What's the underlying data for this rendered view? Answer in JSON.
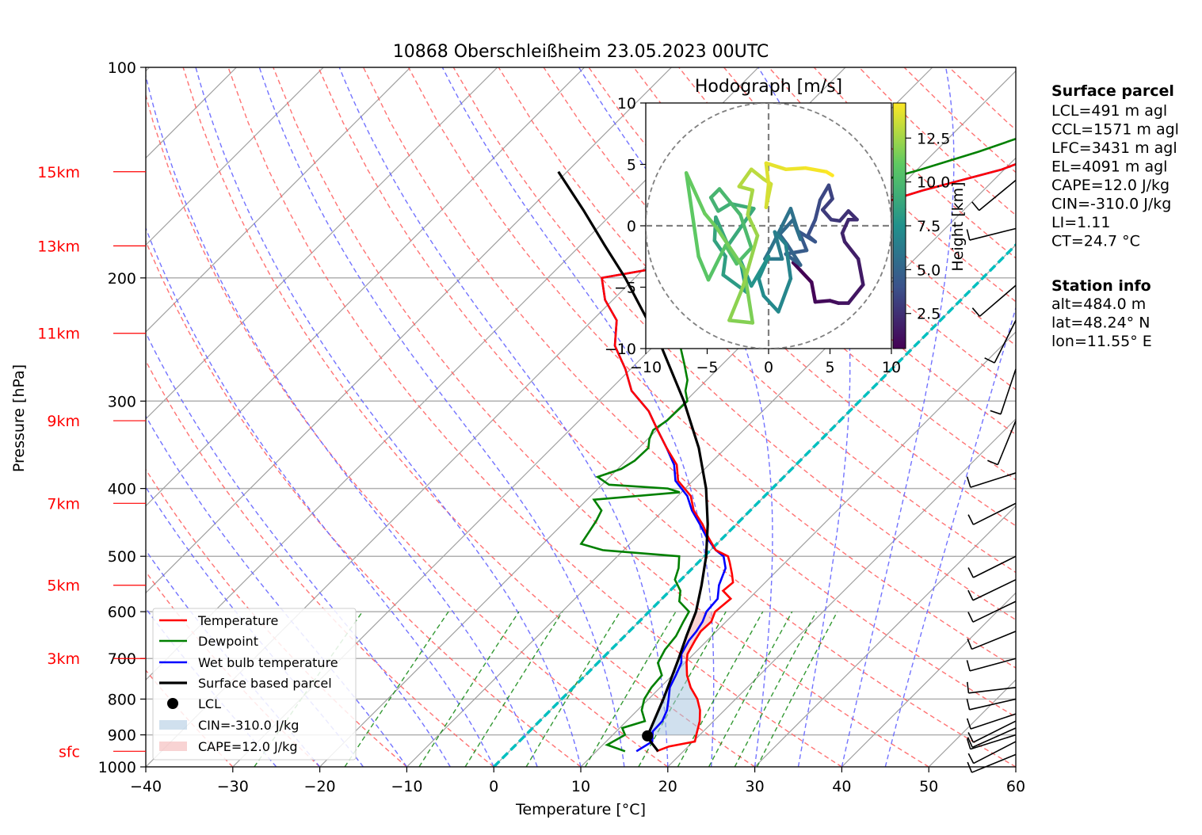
{
  "chart_data": {
    "type": "skew-t log-p sounding",
    "title": "10868 Oberschleißheim 23.05.2023 00UTC",
    "xlabel": "Temperature [°C]",
    "ylabel": "Pressure [hPa]",
    "xlim": [
      -40,
      60
    ],
    "ylim_hpa": [
      1000,
      100
    ],
    "x_ticks": [
      -40,
      -30,
      -20,
      -10,
      0,
      10,
      20,
      30,
      40,
      50,
      60
    ],
    "x_tick_labels": [
      "−40",
      "−30",
      "−20",
      "−10",
      "0",
      "10",
      "20",
      "30",
      "40",
      "50",
      "60"
    ],
    "pressure_ticks": [
      1000,
      900,
      800,
      700,
      600,
      500,
      400,
      300,
      200,
      100
    ],
    "pressure_tick_labels": [
      "1000",
      "900",
      "800",
      "700",
      "600",
      "500",
      "400",
      "300",
      "200",
      "100"
    ],
    "height_markers": [
      {
        "label": "sfc",
        "p": 950
      },
      {
        "label": "3km",
        "p": 700
      },
      {
        "label": "5km",
        "p": 550
      },
      {
        "label": "7km",
        "p": 420
      },
      {
        "label": "9km",
        "p": 320
      },
      {
        "label": "11km",
        "p": 240
      },
      {
        "label": "13km",
        "p": 180
      },
      {
        "label": "15km",
        "p": 141
      }
    ],
    "temperature": [
      [
        950,
        16.9
      ],
      [
        935,
        17.8
      ],
      [
        920,
        20.2
      ],
      [
        900,
        19.6
      ],
      [
        860,
        18.4
      ],
      [
        830,
        17.2
      ],
      [
        800,
        15.6
      ],
      [
        770,
        13.5
      ],
      [
        740,
        11.7
      ],
      [
        710,
        10.2
      ],
      [
        690,
        9.3
      ],
      [
        660,
        8.6
      ],
      [
        640,
        8.2
      ],
      [
        620,
        8.3
      ],
      [
        600,
        7.6
      ],
      [
        575,
        7.9
      ],
      [
        560,
        6.1
      ],
      [
        545,
        6.3
      ],
      [
        530,
        5.2
      ],
      [
        510,
        3.6
      ],
      [
        500,
        2.7
      ],
      [
        490,
        0.6
      ],
      [
        470,
        -1.7
      ],
      [
        450,
        -3.9
      ],
      [
        430,
        -6.5
      ],
      [
        410,
        -8.5
      ],
      [
        390,
        -11.7
      ],
      [
        370,
        -13.7
      ],
      [
        350,
        -16.8
      ],
      [
        330,
        -19.9
      ],
      [
        310,
        -23.1
      ],
      [
        290,
        -27.4
      ],
      [
        270,
        -30.6
      ],
      [
        250,
        -34.5
      ],
      [
        230,
        -37.2
      ],
      [
        215,
        -40.9
      ],
      [
        200,
        -43.8
      ],
      [
        190,
        -35.4
      ],
      [
        180,
        -29.4
      ],
      [
        170,
        -27.1
      ],
      [
        160,
        -22.0
      ],
      [
        150,
        -17.0
      ],
      [
        140,
        -10.3
      ],
      [
        130,
        -6.0
      ],
      [
        120,
        -1.0
      ],
      [
        112,
        2.8
      ],
      [
        105,
        5.7
      ],
      [
        101,
        9.8
      ]
    ],
    "dewpoint": [
      [
        950,
        13.3
      ],
      [
        930,
        10.5
      ],
      [
        900,
        11.4
      ],
      [
        880,
        10.3
      ],
      [
        860,
        12.1
      ],
      [
        830,
        10.5
      ],
      [
        800,
        9.5
      ],
      [
        770,
        9.0
      ],
      [
        740,
        8.8
      ],
      [
        710,
        6.9
      ],
      [
        680,
        6.2
      ],
      [
        650,
        5.9
      ],
      [
        620,
        5.1
      ],
      [
        600,
        4.6
      ],
      [
        580,
        2.3
      ],
      [
        560,
        1.2
      ],
      [
        540,
        -0.7
      ],
      [
        520,
        -1.6
      ],
      [
        500,
        -2.9
      ],
      [
        490,
        -12.4
      ],
      [
        480,
        -15.6
      ],
      [
        460,
        -16.1
      ],
      [
        445,
        -16.5
      ],
      [
        430,
        -17.1
      ],
      [
        415,
        -19.2
      ],
      [
        405,
        -10.2
      ],
      [
        400,
        -12.0
      ],
      [
        395,
        -19.2
      ],
      [
        385,
        -21.4
      ],
      [
        375,
        -19.6
      ],
      [
        365,
        -19.0
      ],
      [
        350,
        -18.9
      ],
      [
        340,
        -19.8
      ],
      [
        330,
        -20.4
      ],
      [
        320,
        -19.9
      ],
      [
        300,
        -19.8
      ],
      [
        290,
        -21.2
      ],
      [
        280,
        -22.2
      ],
      [
        265,
        -24.5
      ],
      [
        250,
        -27.0
      ],
      [
        235,
        -29.1
      ],
      [
        220,
        -29.8
      ],
      [
        205,
        -31.1
      ],
      [
        198,
        -32.9
      ],
      [
        190,
        -36.2
      ],
      [
        180,
        -34.3
      ],
      [
        170,
        -32.6
      ],
      [
        160,
        -30.5
      ],
      [
        150,
        -25.7
      ],
      [
        140,
        -19.6
      ],
      [
        132,
        -15.0
      ],
      [
        126,
        -11.9
      ],
      [
        120,
        -9.1
      ]
    ],
    "wet_bulb": [
      [
        950,
        14.6
      ],
      [
        920,
        15.3
      ],
      [
        890,
        14.2
      ],
      [
        860,
        14.1
      ],
      [
        830,
        13.4
      ],
      [
        800,
        12.3
      ],
      [
        770,
        11.1
      ],
      [
        740,
        10.4
      ],
      [
        710,
        9.6
      ],
      [
        690,
        8.6
      ],
      [
        660,
        7.9
      ],
      [
        640,
        7.7
      ],
      [
        620,
        7.3
      ],
      [
        600,
        6.6
      ],
      [
        575,
        6.4
      ],
      [
        550,
        5.0
      ],
      [
        520,
        3.8
      ],
      [
        500,
        2.2
      ],
      [
        490,
        0.6
      ],
      [
        470,
        -1.9
      ],
      [
        450,
        -4.2
      ],
      [
        430,
        -6.7
      ],
      [
        410,
        -8.9
      ],
      [
        390,
        -12.0
      ],
      [
        370,
        -14.0
      ],
      [
        350,
        -16.8
      ],
      [
        330,
        -19.9
      ],
      [
        310,
        -23.1
      ],
      [
        290,
        -27.4
      ],
      [
        270,
        -30.6
      ],
      [
        250,
        -34.5
      ],
      [
        230,
        -37.2
      ],
      [
        215,
        -40.9
      ],
      [
        200,
        -43.8
      ],
      [
        190,
        -35.4
      ],
      [
        180,
        -29.4
      ],
      [
        170,
        -27.1
      ],
      [
        160,
        -22.0
      ],
      [
        150,
        -17.0
      ],
      [
        140,
        -10.3
      ],
      [
        130,
        -6.0
      ],
      [
        120,
        -1.0
      ],
      [
        112,
        2.8
      ],
      [
        105,
        5.7
      ],
      [
        101,
        10.0
      ]
    ],
    "parcel": [
      [
        950,
        17.1
      ],
      [
        920,
        15.1
      ],
      [
        903,
        14.1
      ],
      [
        880,
        13.6
      ],
      [
        850,
        12.9
      ],
      [
        800,
        11.7
      ],
      [
        750,
        10.3
      ],
      [
        700,
        8.8
      ],
      [
        650,
        7.1
      ],
      [
        600,
        5.4
      ],
      [
        550,
        3.0
      ],
      [
        500,
        0.2
      ],
      [
        450,
        -3.3
      ],
      [
        400,
        -7.6
      ],
      [
        350,
        -13.1
      ],
      [
        300,
        -20.2
      ],
      [
        250,
        -29.2
      ],
      [
        200,
        -41.1
      ],
      [
        180,
        -47.1
      ],
      [
        160,
        -53.7
      ],
      [
        141,
        -61.0
      ]
    ],
    "lcl": {
      "p": 903,
      "t": 14.1
    },
    "legend": [
      "Temperature",
      "Dewpoint",
      "Wet bulb temperature",
      "Surface based parcel",
      "LCL",
      "CIN=-310.0 J/kg",
      "CAPE=12.0 J/kg"
    ],
    "hodograph": {
      "title": "Hodograph [m/s]",
      "xlim": [
        -10,
        10
      ],
      "ylim": [
        -10,
        10
      ],
      "x_ticks": [
        -10,
        -5,
        0,
        5,
        10
      ],
      "x_tick_labels": [
        "−10",
        "−5",
        "0",
        "5",
        "10"
      ],
      "y_ticks": [
        10,
        5,
        0,
        -5,
        -10
      ],
      "y_tick_labels": [
        "10",
        "5",
        "0",
        "−5",
        "−10"
      ],
      "colorbar_label": "Height [km]",
      "colorbar_ticks": [
        2.5,
        5.0,
        7.5,
        10.0,
        12.5
      ],
      "colorbar_tick_labels": [
        "2.5",
        "5.0",
        "7.5",
        "10.0",
        "12.5"
      ],
      "colorbar_range": [
        0.5,
        14.5
      ],
      "trace": [
        [
          2,
          -3
        ],
        [
          3.5,
          -4.6
        ],
        [
          3.8,
          -6.2
        ],
        [
          5,
          -6.1
        ],
        [
          5.7,
          -6.3
        ],
        [
          6.5,
          -6.3
        ],
        [
          7.7,
          -4.8
        ],
        [
          7.3,
          -2.7
        ],
        [
          6.2,
          -1.3
        ],
        [
          6,
          -0.6
        ],
        [
          6.5,
          0.5
        ],
        [
          7.2,
          0.5
        ],
        [
          6.5,
          1.2
        ],
        [
          5.8,
          0.4
        ],
        [
          5.1,
          0.5
        ],
        [
          4.4,
          1.3
        ],
        [
          5.2,
          2.2
        ],
        [
          4.9,
          3.3
        ],
        [
          4.2,
          2.1
        ],
        [
          3.8,
          0.5
        ],
        [
          3.2,
          -0.8
        ],
        [
          3.8,
          -1.3
        ],
        [
          2.5,
          -0.5
        ],
        [
          3.1,
          -2.0
        ],
        [
          1.4,
          -2.3
        ],
        [
          2.6,
          -3.2
        ],
        [
          1.5,
          -1.5
        ],
        [
          0.9,
          -0.7
        ],
        [
          2.0,
          0.5
        ],
        [
          2.6,
          -1.1
        ],
        [
          1.8,
          1.4
        ],
        [
          0.2,
          -1.8
        ],
        [
          -0.3,
          -2.7
        ],
        [
          1.1,
          -2.7
        ],
        [
          0.5,
          -0.5
        ],
        [
          1.4,
          -1.5
        ],
        [
          1.8,
          -4.3
        ],
        [
          0.8,
          -7.0
        ],
        [
          -0.4,
          -5.7
        ],
        [
          -0.8,
          -4.3
        ],
        [
          0,
          -2.5
        ],
        [
          -1.4,
          -4.9
        ],
        [
          -2.3,
          -2.8
        ],
        [
          -1.8,
          -5.4
        ],
        [
          -3.7,
          -4.0
        ],
        [
          -3.5,
          -2.5
        ],
        [
          -4.4,
          -1.2
        ],
        [
          -4.3,
          0.7
        ],
        [
          -3.3,
          -1.6
        ],
        [
          -1.2,
          1.4
        ],
        [
          -3.1,
          1.8
        ],
        [
          -4.1,
          1.2
        ],
        [
          -4.7,
          2.3
        ],
        [
          -4.0,
          3.0
        ],
        [
          -2.3,
          0.9
        ],
        [
          -1.4,
          -1.8
        ],
        [
          -2.6,
          -3.1
        ],
        [
          -3.5,
          -1.6
        ],
        [
          -4.9,
          -4.4
        ],
        [
          -5.7,
          -2.5
        ],
        [
          -6.7,
          4.3
        ],
        [
          -5.2,
          1.0
        ],
        [
          -4.2,
          -0.2
        ],
        [
          -2.0,
          -3.5
        ],
        [
          -1.3,
          -7.9
        ],
        [
          -3.2,
          -7.7
        ],
        [
          -2.1,
          -5.0
        ],
        [
          -0.9,
          -0.8
        ],
        [
          -1.7,
          0.9
        ],
        [
          -1.3,
          2.9
        ],
        [
          -2.4,
          3.2
        ],
        [
          -1.4,
          4.6
        ],
        [
          -0.4,
          3.8
        ],
        [
          0.2,
          3.4
        ],
        [
          -0.2,
          1.5
        ],
        [
          0,
          3.4
        ],
        [
          -0.2,
          5.1
        ],
        [
          1.4,
          4.6
        ],
        [
          3.0,
          4.7
        ],
        [
          4.7,
          4.4
        ],
        [
          5.2,
          4.1
        ]
      ]
    },
    "surface_parcel": {
      "header": "Surface parcel",
      "lines": [
        "LCL=491 m agl",
        "CCL=1571 m agl",
        "LFC=3431 m agl",
        "EL=4091 m agl",
        "CAPE=12.0 J/kg",
        "CIN=-310.0 J/kg",
        "LI=1.11",
        "CT=24.7 °C"
      ]
    },
    "station_info": {
      "header": "Station info",
      "lines": [
        "alt=484.0 m",
        "lat=48.24° N",
        "lon=11.55° E"
      ]
    },
    "wind_barbs": [
      [
        960,
        -22,
        9
      ],
      [
        920,
        -29,
        15
      ],
      [
        900,
        -35,
        11
      ],
      [
        880,
        -27,
        12
      ],
      [
        860,
        -24,
        12
      ],
      [
        840,
        -36,
        12
      ],
      [
        800,
        -35,
        8
      ],
      [
        770,
        -34,
        4
      ],
      [
        700,
        -37,
        10
      ],
      [
        640,
        -32,
        13
      ],
      [
        580,
        -29,
        14
      ],
      [
        540,
        -27,
        13
      ],
      [
        500,
        -28,
        14
      ],
      [
        420,
        -20,
        10
      ],
      [
        380,
        -22,
        7
      ],
      [
        320,
        -9,
        22
      ],
      [
        270,
        -8,
        24
      ],
      [
        230,
        -11,
        22
      ],
      [
        205,
        -14,
        12
      ],
      [
        170,
        -24,
        6
      ],
      [
        145,
        -17,
        14
      ]
    ],
    "colors": {
      "temperature": "#ff0000",
      "dewpoint": "#008000",
      "wet_bulb": "#0000ff",
      "parcel": "#000000",
      "freezing_line": "#00bfbf",
      "cin_fill": "#a9c6e0",
      "cape_fill": "#f4b5b5",
      "hkm_labels": "#ff0000"
    }
  }
}
